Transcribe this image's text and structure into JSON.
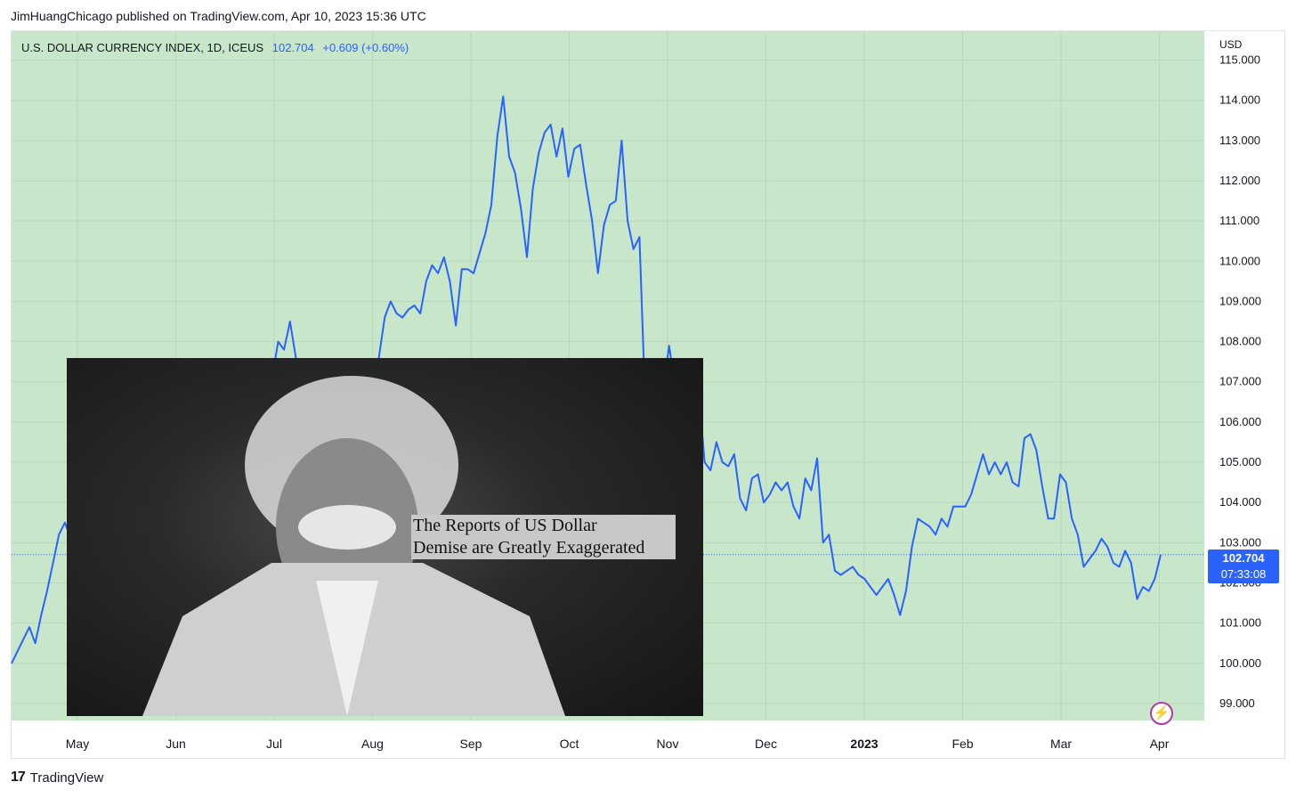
{
  "header": {
    "publisher_text": "JimHuangChicago published on TradingView.com, Apr 10, 2023 15:36 UTC"
  },
  "legend": {
    "symbol_text": "U.S. DOLLAR CURRENCY INDEX, 1D, ICEUS",
    "last": "102.704",
    "change": "+0.609 (+0.60%)"
  },
  "axis": {
    "currency": "USD"
  },
  "price_label": {
    "value": "102.704",
    "countdown": "07:33:08"
  },
  "overlay": {
    "caption_line1": "The Reports of US Dollar",
    "caption_line2": "Demise are Greatly Exaggerated"
  },
  "footer": {
    "brand": "TradingView",
    "logo_text": "17"
  },
  "colors": {
    "background": "#c8e6c9",
    "line": "#2962ff",
    "grid": "#b8d8ba",
    "text": "#131722"
  },
  "chart_data": {
    "type": "line",
    "series": [
      {
        "name": "U.S. DOLLAR CURRENCY INDEX",
        "values": [
          100.0,
          100.3,
          100.6,
          100.9,
          100.5,
          101.2,
          101.8,
          102.5,
          103.2,
          103.5,
          103.1,
          103.6,
          103.3,
          102.7,
          103.8,
          103.6,
          103.9,
          104.2,
          104.8,
          104.3,
          103.6,
          103.2,
          102.5,
          101.9,
          102.1,
          101.6,
          101.4,
          101.9,
          102.3,
          102.1,
          102.5,
          103.3,
          104.3,
          105.5,
          104.6,
          104.4,
          104.5,
          104.2,
          104.0,
          104.1,
          104.8,
          105.3,
          106.4,
          107.0,
          107.1,
          108.0,
          107.8,
          108.5,
          107.6,
          107.1,
          106.6,
          107.0,
          106.8,
          107.0,
          106.3,
          105.7,
          106.6,
          106.3,
          105.1,
          105.5,
          106.7,
          106.4,
          107.6,
          108.6,
          109.0,
          108.7,
          108.6,
          108.8,
          108.9,
          108.7,
          109.5,
          109.9,
          109.7,
          110.1,
          109.5,
          108.4,
          109.8,
          109.8,
          109.7,
          110.2,
          110.7,
          111.4,
          113.1,
          114.1,
          112.6,
          112.2,
          111.3,
          110.1,
          111.8,
          112.7,
          113.2,
          113.4,
          112.6,
          113.3,
          112.1,
          112.8,
          112.9,
          111.9,
          111.0,
          109.7,
          110.9,
          111.4,
          111.5,
          113.0,
          111.0,
          110.3,
          110.6,
          106.4,
          106.6,
          106.3,
          106.8,
          107.9,
          106.9,
          106.2,
          105.9,
          106.6,
          106.8,
          105.0,
          104.8,
          105.5,
          105.0,
          104.9,
          105.2,
          104.1,
          103.8,
          104.6,
          104.7,
          104.0,
          104.2,
          104.5,
          104.3,
          104.5,
          103.9,
          103.6,
          104.6,
          104.3,
          105.1,
          103.0,
          103.2,
          102.3,
          102.2,
          102.3,
          102.4,
          102.2,
          102.1,
          101.9,
          101.7,
          101.9,
          102.1,
          101.7,
          101.2,
          101.8,
          102.9,
          103.6,
          103.5,
          103.4,
          103.2,
          103.6,
          103.4,
          103.9,
          103.9,
          103.9,
          104.2,
          104.7,
          105.2,
          104.7,
          105.0,
          104.7,
          105.0,
          104.5,
          104.4,
          105.6,
          105.7,
          105.3,
          104.4,
          103.6,
          103.6,
          104.7,
          104.5,
          103.6,
          103.2,
          102.4,
          102.6,
          102.8,
          103.1,
          102.9,
          102.5,
          102.4,
          102.8,
          102.5,
          101.6,
          101.9,
          101.8,
          102.1,
          102.704
        ]
      }
    ],
    "x_tick_labels": [
      "May",
      "Jun",
      "Jul",
      "Aug",
      "Sep",
      "Oct",
      "Nov",
      "Dec",
      "2023",
      "Feb",
      "Mar",
      "Apr"
    ],
    "y_tick_labels": [
      "99.000",
      "100.000",
      "101.000",
      "102.000",
      "103.000",
      "104.000",
      "105.000",
      "106.000",
      "107.000",
      "108.000",
      "109.000",
      "110.000",
      "111.000",
      "112.000",
      "113.000",
      "114.000",
      "115.000"
    ],
    "ylim": [
      98.6,
      115.3
    ],
    "last_value": 102.704,
    "grid": true
  }
}
